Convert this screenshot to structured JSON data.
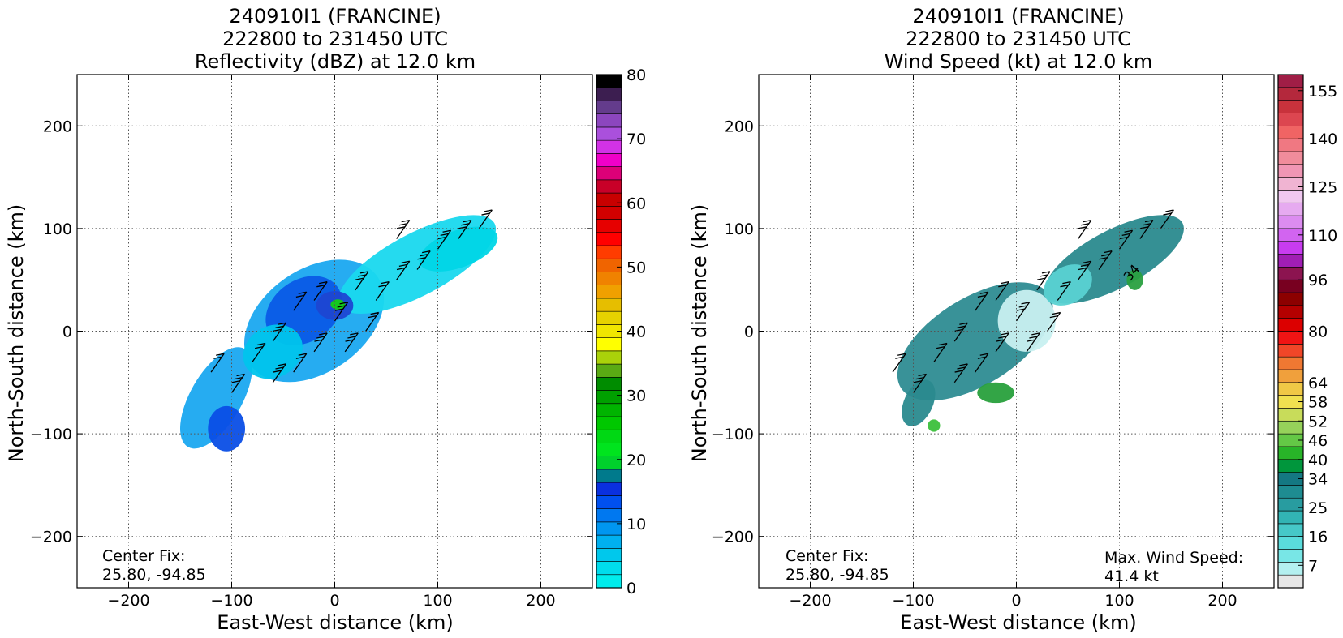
{
  "chart_data": [
    {
      "type": "heatmap",
      "title_lines": [
        "240910I1 (FRANCINE)",
        "222800 to 231450 UTC",
        "Reflectivity (dBZ) at 12.0 km"
      ],
      "xlabel": "East-West distance (km)",
      "ylabel": "North-South distance (km)",
      "xlim": [
        -250,
        250
      ],
      "ylim": [
        -250,
        250
      ],
      "xticks": [
        -200,
        -100,
        0,
        100,
        200
      ],
      "yticks": [
        -200,
        -100,
        0,
        100,
        200
      ],
      "grid": true,
      "annotation_lines": [
        "Center Fix:",
        "25.80, -94.85"
      ],
      "colorbar": {
        "min": 0,
        "max": 80,
        "ticks": [
          0,
          10,
          20,
          30,
          40,
          50,
          60,
          70,
          80
        ],
        "colors": [
          "#00ecec",
          "#00dcec",
          "#00c8ec",
          "#00b0f0",
          "#0096f0",
          "#0078f0",
          "#0050f0",
          "#0a30e0",
          "#007a8c",
          "#00d02c",
          "#00e41e",
          "#00d814",
          "#00c800",
          "#00b400",
          "#00a000",
          "#008c00",
          "#5aaa14",
          "#aad20a",
          "#ffff00",
          "#f0e600",
          "#e6d200",
          "#e6be00",
          "#f0a000",
          "#f08200",
          "#f06400",
          "#ff3c00",
          "#ff0000",
          "#e60000",
          "#d20000",
          "#c80000",
          "#c80028",
          "#dc0078",
          "#f000c8",
          "#d232e6",
          "#aa50dc",
          "#8c46be",
          "#643c8c",
          "#3c1e50",
          "#000000"
        ]
      },
      "centers": [
        [
          -40,
          10
        ],
        [
          0,
          40
        ],
        [
          100,
          78
        ],
        [
          -110,
          -70
        ],
        [
          -120,
          -30
        ],
        [
          20,
          20
        ],
        [
          -30,
          -30
        ]
      ],
      "wind_barbs": [
        [
          -120,
          -40,
          20
        ],
        [
          -100,
          -60,
          25
        ],
        [
          -60,
          -10,
          25
        ],
        [
          -40,
          20,
          20
        ],
        [
          -20,
          -20,
          25
        ],
        [
          0,
          10,
          30
        ],
        [
          20,
          40,
          25
        ],
        [
          40,
          30,
          20
        ],
        [
          60,
          50,
          25
        ],
        [
          80,
          60,
          25
        ],
        [
          100,
          80,
          25
        ],
        [
          120,
          90,
          25
        ],
        [
          -80,
          -30,
          20
        ],
        [
          -60,
          -50,
          25
        ],
        [
          -20,
          30,
          20
        ],
        [
          10,
          -20,
          25
        ],
        [
          60,
          90,
          25
        ],
        [
          140,
          100,
          20
        ],
        [
          -40,
          -40,
          20
        ],
        [
          30,
          0,
          20
        ]
      ]
    },
    {
      "type": "heatmap",
      "title_lines": [
        "240910I1 (FRANCINE)",
        "222800 to 231450 UTC",
        "Wind Speed (kt) at 12.0 km"
      ],
      "xlabel": "East-West distance (km)",
      "ylabel": "North-South distance (km)",
      "xlim": [
        -250,
        250
      ],
      "ylim": [
        -250,
        250
      ],
      "xticks": [
        -200,
        -100,
        0,
        100,
        200
      ],
      "yticks": [
        -200,
        -100,
        0,
        100,
        200
      ],
      "grid": true,
      "annotation_lines": [
        "Center Fix:",
        "25.80, -94.85"
      ],
      "max_wind_lines": [
        "Max. Wind Speed:",
        "41.4 kt"
      ],
      "contour_label": "34",
      "colorbar": {
        "min": 0,
        "max": 160,
        "ticks": [
          7,
          16,
          25,
          34,
          40,
          46,
          52,
          58,
          64,
          80,
          96,
          110,
          125,
          140,
          155
        ],
        "colors": [
          "#e6e6e6",
          "#b4f0f0",
          "#78e6e6",
          "#5adcdc",
          "#46c8c8",
          "#32b4b4",
          "#289ca0",
          "#1e8c91",
          "#147882",
          "#00963c",
          "#28b428",
          "#64c846",
          "#96d25a",
          "#c8dc5a",
          "#f0e150",
          "#f0c846",
          "#f0a03c",
          "#f07832",
          "#f04628",
          "#f01414",
          "#dc0000",
          "#b40000",
          "#8c0000",
          "#780020",
          "#8c1450",
          "#a01eb4",
          "#c83cf0",
          "#d264f0",
          "#dc8cf0",
          "#e6aaf0",
          "#f0c8f0",
          "#f0b4d2",
          "#f096b4",
          "#f08c9b",
          "#f07882",
          "#f06464",
          "#dc4650",
          "#c8323c",
          "#b4283c",
          "#a01e46"
        ]
      },
      "centers": [
        [
          -20,
          20
        ],
        [
          90,
          70
        ],
        [
          -80,
          -60
        ],
        [
          0,
          0
        ],
        [
          40,
          40
        ]
      ],
      "wind_barbs": [
        [
          -120,
          -40,
          20
        ],
        [
          -100,
          -60,
          25
        ],
        [
          -60,
          -10,
          25
        ],
        [
          -40,
          20,
          20
        ],
        [
          -20,
          -20,
          25
        ],
        [
          0,
          10,
          30
        ],
        [
          20,
          40,
          25
        ],
        [
          40,
          30,
          20
        ],
        [
          60,
          50,
          25
        ],
        [
          80,
          60,
          25
        ],
        [
          100,
          80,
          25
        ],
        [
          120,
          90,
          25
        ],
        [
          -80,
          -30,
          20
        ],
        [
          -60,
          -50,
          25
        ],
        [
          -20,
          30,
          20
        ],
        [
          10,
          -20,
          25
        ],
        [
          60,
          90,
          25
        ],
        [
          140,
          100,
          20
        ],
        [
          -40,
          -40,
          20
        ],
        [
          30,
          0,
          20
        ]
      ]
    }
  ]
}
